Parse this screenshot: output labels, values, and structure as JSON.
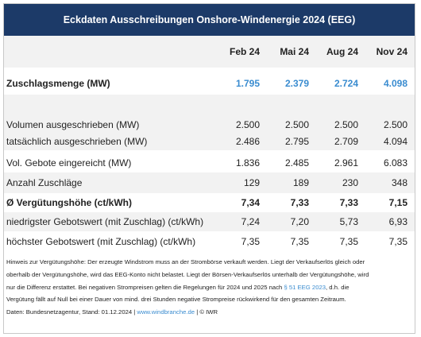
{
  "title": "Eckdaten Ausschreibungen Onshore-Windenergie 2024 (EEG)",
  "columns": [
    "Feb 24",
    "Mai 24",
    "Aug 24",
    "Nov 24"
  ],
  "zuschlag": {
    "label": "Zuschlagsmenge (MW)",
    "values": [
      "1.795",
      "2.379",
      "2.724",
      "4.098"
    ]
  },
  "rows": [
    {
      "label": "Volumen ausgeschrieben (MW)",
      "values": [
        "2.500",
        "2.500",
        "2.500",
        "2.500"
      ]
    },
    {
      "label": "tatsächlich ausgeschrieben (MW)",
      "values": [
        "2.486",
        "2.795",
        "2.709",
        "4.094"
      ]
    },
    {
      "label": "Vol. Gebote eingereicht (MW)",
      "values": [
        "1.836",
        "2.485",
        "2.961",
        "6.083"
      ]
    },
    {
      "label": "Anzahl Zuschläge",
      "values": [
        "129",
        "189",
        "230",
        "348"
      ]
    },
    {
      "label": "Ø Vergütungshöhe (ct/kWh)",
      "values": [
        "7,34",
        "7,33",
        "7,33",
        "7,15"
      ]
    },
    {
      "label": "niedrigster Gebotswert (mit Zuschlag) (ct/kWh)",
      "values": [
        "7,24",
        "7,20",
        "5,73",
        "6,93"
      ]
    },
    {
      "label": "höchster Gebotswert (mit Zuschlag) (ct/kWh)",
      "values": [
        "7,35",
        "7,35",
        "7,35",
        "7,35"
      ]
    }
  ],
  "note": {
    "line1": "Hinweis zur Vergütungshöhe: Der erzeugte Windstrom muss an der Strombörse verkauft werden. Liegt der Verkaufserlös gleich oder",
    "line2": "oberhalb der Vergütungshöhe, wird das EEG-Konto nicht belastet. Liegt der Börsen-Verkaufserlös unterhalb  der Vergütungshöhe, wird",
    "line3_pre": "nur die Differenz erstattet. Bei negativen Strompreisen  gelten die Regelungen für 2024 und 2025 nach ",
    "line3_link": "§ 51 EEG 2023",
    "line3_post": ", d.h. die",
    "line4": "Vergütung fällt auf Null  bei einer Dauer von mind. drei Stunden negative Strompreise rückwirkend für den gesamten Zeitraum.",
    "source_pre": "Daten: Bundesnetzagentur, Stand: 01.12.2024  |  ",
    "source_link": "www.windbranche.de",
    "source_post": "  |  © IWR"
  }
}
